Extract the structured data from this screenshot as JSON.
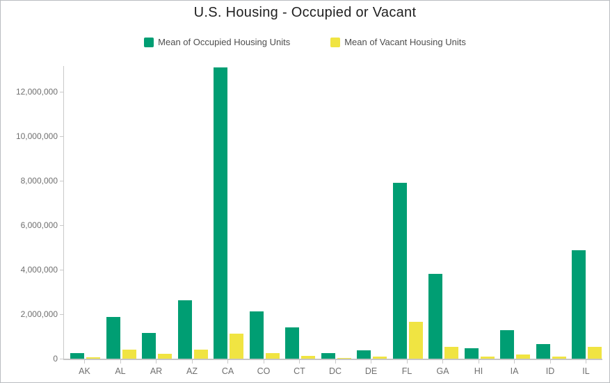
{
  "chart_data": {
    "type": "bar",
    "title": "U.S. Housing - Occupied or Vacant",
    "categories": [
      "AK",
      "AL",
      "AR",
      "AZ",
      "CA",
      "CO",
      "CT",
      "DC",
      "DE",
      "FL",
      "GA",
      "HI",
      "IA",
      "ID",
      "IL"
    ],
    "series": [
      {
        "name": "Mean of Occupied Housing Units",
        "color": "#009E73",
        "values": [
          250000,
          1860000,
          1160000,
          2620000,
          13100000,
          2130000,
          1410000,
          265000,
          360000,
          7900000,
          3800000,
          470000,
          1270000,
          650000,
          4890000
        ]
      },
      {
        "name": "Mean of Vacant Housing Units",
        "color": "#F0E442",
        "values": [
          65000,
          410000,
          210000,
          400000,
          1120000,
          260000,
          135000,
          40000,
          85000,
          1650000,
          520000,
          95000,
          175000,
          105000,
          530000
        ]
      }
    ],
    "xlabel": "",
    "ylabel": "",
    "ylim": [
      0,
      13200000
    ],
    "yticks": [
      0,
      2000000,
      4000000,
      6000000,
      8000000,
      10000000,
      12000000
    ],
    "ytick_labels": [
      "0",
      "2,000,000",
      "4,000,000",
      "6,000,000",
      "8,000,000",
      "10,000,000",
      "12,000,000"
    ],
    "grid": false,
    "legend_position": "top",
    "colors": {
      "axis": "#c9c9c9",
      "x_axis_line": "#c5c5c5",
      "tick_label": "#6f6f6f",
      "title": "#1f1f1f",
      "legend_text": "#4d4d4d",
      "canvas_border": "#b9bcc0",
      "background": "#ffffff"
    }
  }
}
